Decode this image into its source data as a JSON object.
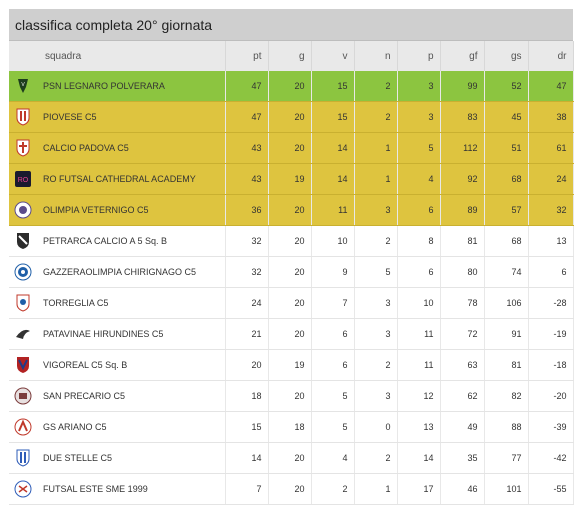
{
  "title": "classifica completa 20° giornata",
  "columns": {
    "squadra": "squadra",
    "pt": "pt",
    "g": "g",
    "v": "v",
    "n": "n",
    "p": "p",
    "gf": "gf",
    "gs": "gs",
    "dr": "dr"
  },
  "colors": {
    "promotion": "#8cc540",
    "playoff": "#dec43f"
  },
  "rows": [
    {
      "team": "PSN LEGNARO POLVERARA",
      "pt": "47",
      "g": "20",
      "v": "15",
      "n": "2",
      "p": "3",
      "gf": "99",
      "gs": "52",
      "dr": "47",
      "logo": "psn-logo",
      "band": "green"
    },
    {
      "team": "PIOVESE C5",
      "pt": "47",
      "g": "20",
      "v": "15",
      "n": "2",
      "p": "3",
      "gf": "83",
      "gs": "45",
      "dr": "38",
      "logo": "piovese-logo",
      "band": "yellow"
    },
    {
      "team": "CALCIO PADOVA C5",
      "pt": "43",
      "g": "20",
      "v": "14",
      "n": "1",
      "p": "5",
      "gf": "112",
      "gs": "51",
      "dr": "61",
      "logo": "padova-logo",
      "band": "yellow"
    },
    {
      "team": "RO FUTSAL CATHEDRAL ACADEMY",
      "pt": "43",
      "g": "19",
      "v": "14",
      "n": "1",
      "p": "4",
      "gf": "92",
      "gs": "68",
      "dr": "24",
      "logo": "ro-futsal-logo",
      "band": "yellow"
    },
    {
      "team": "OLIMPIA VETERNIGO C5",
      "pt": "36",
      "g": "20",
      "v": "11",
      "n": "3",
      "p": "6",
      "gf": "89",
      "gs": "57",
      "dr": "32",
      "logo": "olimpia-logo",
      "band": "yellow"
    },
    {
      "team": "PETRARCA CALCIO A 5 Sq. B",
      "pt": "32",
      "g": "20",
      "v": "10",
      "n": "2",
      "p": "8",
      "gf": "81",
      "gs": "68",
      "dr": "13",
      "logo": "petrarca-logo",
      "band": "white"
    },
    {
      "team": "GAZZERAOLIMPIA CHIRIGNAGO C5",
      "pt": "32",
      "g": "20",
      "v": "9",
      "n": "5",
      "p": "6",
      "gf": "80",
      "gs": "74",
      "dr": "6",
      "logo": "gazzera-logo",
      "band": "white"
    },
    {
      "team": "TORREGLIA C5",
      "pt": "24",
      "g": "20",
      "v": "7",
      "n": "3",
      "p": "10",
      "gf": "78",
      "gs": "106",
      "dr": "-28",
      "logo": "torreglia-logo",
      "band": "white"
    },
    {
      "team": "PATAVINAE HIRUNDINES C5",
      "pt": "21",
      "g": "20",
      "v": "6",
      "n": "3",
      "p": "11",
      "gf": "72",
      "gs": "91",
      "dr": "-19",
      "logo": "patavinae-logo",
      "band": "white"
    },
    {
      "team": "VIGOREAL C5 Sq. B",
      "pt": "20",
      "g": "19",
      "v": "6",
      "n": "2",
      "p": "11",
      "gf": "63",
      "gs": "81",
      "dr": "-18",
      "logo": "vigoreal-logo",
      "band": "white"
    },
    {
      "team": "SAN PRECARIO C5",
      "pt": "18",
      "g": "20",
      "v": "5",
      "n": "3",
      "p": "12",
      "gf": "62",
      "gs": "82",
      "dr": "-20",
      "logo": "san-precario-logo",
      "band": "white"
    },
    {
      "team": "GS ARIANO C5",
      "pt": "15",
      "g": "18",
      "v": "5",
      "n": "0",
      "p": "13",
      "gf": "49",
      "gs": "88",
      "dr": "-39",
      "logo": "ariano-logo",
      "band": "white"
    },
    {
      "team": "DUE STELLE C5",
      "pt": "14",
      "g": "20",
      "v": "4",
      "n": "2",
      "p": "14",
      "gf": "35",
      "gs": "77",
      "dr": "-42",
      "logo": "due-stelle-logo",
      "band": "white"
    },
    {
      "team": "FUTSAL ESTE SME 1999",
      "pt": "7",
      "g": "20",
      "v": "2",
      "n": "1",
      "p": "17",
      "gf": "46",
      "gs": "101",
      "dr": "-55",
      "logo": "este-logo",
      "band": "white"
    }
  ]
}
